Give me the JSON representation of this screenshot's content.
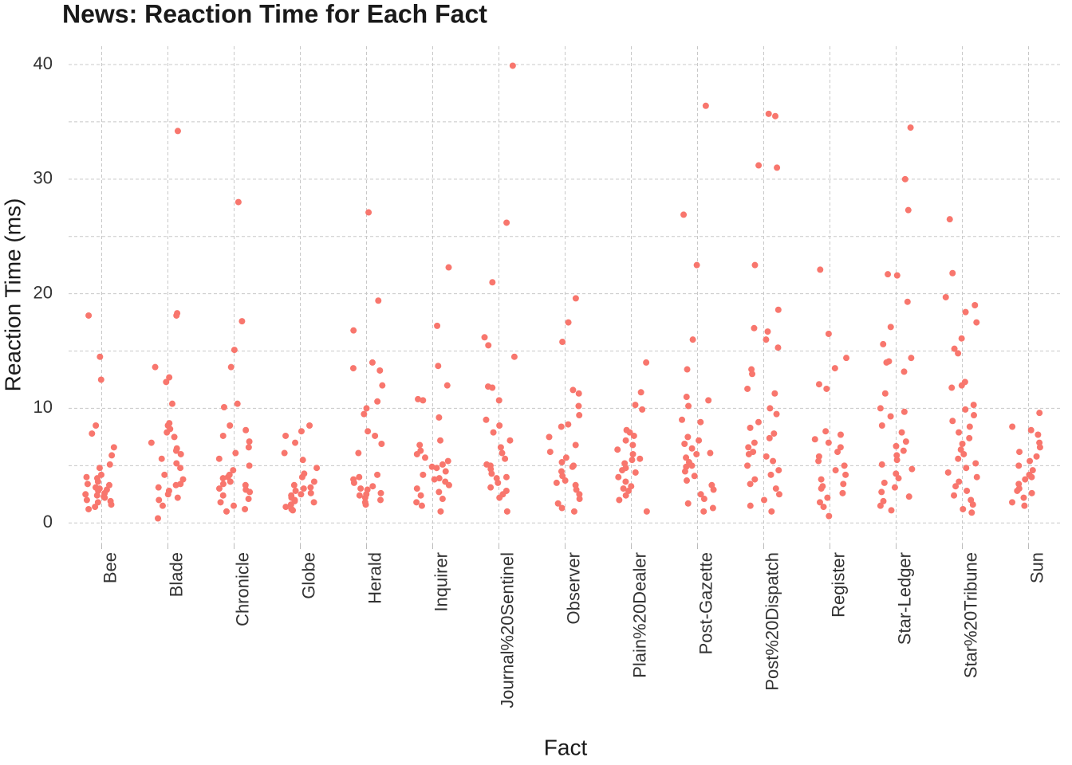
{
  "chart_data": {
    "type": "strip",
    "title": "News: Reaction Time for Each Fact",
    "x_label": "Fact",
    "y_label": "Reaction Time (ms)",
    "color": "#f8766d",
    "grid": true,
    "ylim": [
      -2.0,
      41.6
    ],
    "yticks": [
      0,
      10,
      20,
      30,
      40
    ],
    "y_minor_ticks": [
      5,
      15,
      25,
      35
    ],
    "categories": [
      "Bee",
      "Blade",
      "Chronicle",
      "Globe",
      "Herald",
      "Inquirer",
      "Journal%20Sentinel",
      "Observer",
      "Plain%20Dealer",
      "Post-Gazette",
      "Post%20Dispatch",
      "Register",
      "Star-Ledger",
      "Star%20Tribune",
      "Sun"
    ],
    "values": [
      [
        18.1,
        12.5,
        8.5,
        14.5,
        7.8,
        6.6,
        5.9,
        5.1,
        4.8,
        4.2,
        3.9,
        3.6,
        3.3,
        3.0,
        2.8,
        2.6,
        2.4,
        2.2,
        2.0,
        1.8,
        1.6,
        1.4,
        1.2,
        2.5,
        3.1,
        2.9,
        1.9,
        4.0,
        3.4,
        2.3
      ],
      [
        34.2,
        18.3,
        18.1,
        13.6,
        12.7,
        12.3,
        10.4,
        8.7,
        8.5,
        8.2,
        7.9,
        7.5,
        7.0,
        6.5,
        6.0,
        5.6,
        5.2,
        4.8,
        4.2,
        3.8,
        3.4,
        3.1,
        2.8,
        2.5,
        2.2,
        2.0,
        1.5,
        0.4,
        6.3,
        3.3
      ],
      [
        28.0,
        17.6,
        15.1,
        13.6,
        10.4,
        10.1,
        8.5,
        8.1,
        7.6,
        7.1,
        6.6,
        6.1,
        5.6,
        5.0,
        4.6,
        4.2,
        3.9,
        3.6,
        3.3,
        3.0,
        2.7,
        2.4,
        2.1,
        1.8,
        1.5,
        1.2,
        1.0,
        3.4,
        2.9,
        4.0
      ],
      [
        8.5,
        8.0,
        7.6,
        7.0,
        6.1,
        5.5,
        4.8,
        4.3,
        4.0,
        3.6,
        3.3,
        3.0,
        2.8,
        2.6,
        2.4,
        2.2,
        2.0,
        1.8,
        1.6,
        1.4,
        1.2,
        1.1,
        3.1,
        2.5,
        1.9
      ],
      [
        27.1,
        19.4,
        16.8,
        14.0,
        13.5,
        13.3,
        12.0,
        10.6,
        10.0,
        9.5,
        8.0,
        7.6,
        6.9,
        6.1,
        4.2,
        4.0,
        3.8,
        3.5,
        3.2,
        2.9,
        2.6,
        2.4,
        2.2,
        2.0,
        1.8,
        1.6,
        3.0,
        2.5
      ],
      [
        22.3,
        17.2,
        13.7,
        12.0,
        10.8,
        10.7,
        9.2,
        7.2,
        6.8,
        6.3,
        6.0,
        5.7,
        5.4,
        5.1,
        4.8,
        4.5,
        4.2,
        3.9,
        3.6,
        3.3,
        3.0,
        2.7,
        2.4,
        2.1,
        1.8,
        1.5,
        1.0,
        4.9,
        3.8
      ],
      [
        39.9,
        26.2,
        21.0,
        16.2,
        15.5,
        14.5,
        11.9,
        11.8,
        10.7,
        9.0,
        8.5,
        7.9,
        7.2,
        6.6,
        6.1,
        5.6,
        5.1,
        4.7,
        4.3,
        3.9,
        3.5,
        3.1,
        2.8,
        2.5,
        2.2,
        1.0,
        5.0,
        4.0
      ],
      [
        19.6,
        17.5,
        15.8,
        11.6,
        11.3,
        10.2,
        9.4,
        8.6,
        8.4,
        7.5,
        6.8,
        6.2,
        5.7,
        5.3,
        4.9,
        4.5,
        4.1,
        3.7,
        3.3,
        2.9,
        2.5,
        2.1,
        1.7,
        1.3,
        1.0,
        5.0,
        3.5
      ],
      [
        14.0,
        11.4,
        10.3,
        9.9,
        8.1,
        7.9,
        7.6,
        7.2,
        6.8,
        6.4,
        6.0,
        5.6,
        5.2,
        4.8,
        4.4,
        4.0,
        3.6,
        3.2,
        2.8,
        2.4,
        2.0,
        1.0,
        5.5,
        4.6,
        3.0
      ],
      [
        36.4,
        26.9,
        22.5,
        16.0,
        13.4,
        11.0,
        10.7,
        10.2,
        9.0,
        8.8,
        7.5,
        7.2,
        6.9,
        6.5,
        6.1,
        5.7,
        5.3,
        4.9,
        4.5,
        4.1,
        3.7,
        3.3,
        2.9,
        2.5,
        2.1,
        1.7,
        1.3,
        1.0,
        5.0,
        6.0
      ],
      [
        35.7,
        35.5,
        31.2,
        31.0,
        22.5,
        18.6,
        17.0,
        16.7,
        16.0,
        15.3,
        13.4,
        13.0,
        11.7,
        11.3,
        10.0,
        9.5,
        8.8,
        8.3,
        7.8,
        7.4,
        7.0,
        6.6,
        6.2,
        5.8,
        5.4,
        5.0,
        4.6,
        4.2,
        3.8,
        3.4,
        3.0,
        2.5,
        2.0,
        1.5,
        1.0,
        6.0
      ],
      [
        22.1,
        16.5,
        14.4,
        13.5,
        12.1,
        11.7,
        8.0,
        7.7,
        7.3,
        7.0,
        6.6,
        6.2,
        5.8,
        5.4,
        5.0,
        4.6,
        4.2,
        3.8,
        3.4,
        3.0,
        2.6,
        2.2,
        1.8,
        1.4,
        0.6,
        3.2
      ],
      [
        34.5,
        30.0,
        27.3,
        21.7,
        21.6,
        19.3,
        17.1,
        15.6,
        14.4,
        14.1,
        14.0,
        13.2,
        11.3,
        10.0,
        9.7,
        9.3,
        8.5,
        7.9,
        7.1,
        6.7,
        6.3,
        5.9,
        5.5,
        5.1,
        4.7,
        4.3,
        3.9,
        3.5,
        3.1,
        2.7,
        2.3,
        1.9,
        1.5,
        1.1
      ],
      [
        26.5,
        21.8,
        19.7,
        19.0,
        18.4,
        17.5,
        16.1,
        15.2,
        14.8,
        12.3,
        12.0,
        11.8,
        10.3,
        9.9,
        9.4,
        8.9,
        8.4,
        7.9,
        7.4,
        6.9,
        6.4,
        6.0,
        5.6,
        5.2,
        4.8,
        4.4,
        4.0,
        3.6,
        3.2,
        2.8,
        2.4,
        2.0,
        1.6,
        1.2,
        0.9
      ],
      [
        9.6,
        8.4,
        8.1,
        7.7,
        7.0,
        6.6,
        6.2,
        5.8,
        5.4,
        5.0,
        4.6,
        4.2,
        3.8,
        3.4,
        3.0,
        2.6,
        2.2,
        1.8,
        1.5,
        4.0,
        2.8
      ]
    ]
  }
}
